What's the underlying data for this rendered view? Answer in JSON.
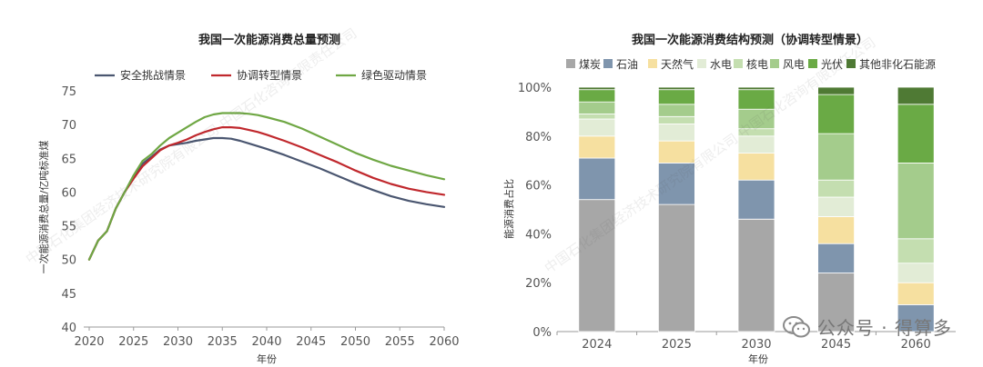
{
  "chart_data": [
    {
      "type": "line",
      "title": "我国一次能源消费总量预测",
      "xlabel": "年份",
      "ylabel": "一次能源消费总量/亿吨标准煤",
      "xlim": [
        2020,
        2060
      ],
      "ylim": [
        40,
        75
      ],
      "xticks": [
        "2020",
        "2025",
        "2030",
        "2035",
        "2040",
        "2045",
        "2050",
        "2055",
        "2060"
      ],
      "yticks": [
        "40",
        "45",
        "50",
        "55",
        "60",
        "65",
        "70",
        "75"
      ],
      "series": [
        {
          "name": "安全挑战情景",
          "color": "#4a5670",
          "x": [
            2020,
            2021,
            2022,
            2023,
            2024,
            2025,
            2026,
            2027,
            2028,
            2029,
            2030,
            2031,
            2032,
            2033,
            2034,
            2035,
            2036,
            2037,
            2038,
            2039,
            2040,
            2042,
            2044,
            2046,
            2048,
            2050,
            2052,
            2054,
            2056,
            2058,
            2060
          ],
          "values": [
            50.0,
            52.8,
            54.2,
            57.6,
            60.0,
            62.2,
            64.2,
            65.2,
            66.3,
            66.9,
            67.1,
            67.3,
            67.6,
            67.8,
            68.0,
            68.0,
            67.9,
            67.6,
            67.2,
            66.8,
            66.4,
            65.5,
            64.5,
            63.5,
            62.4,
            61.3,
            60.3,
            59.4,
            58.7,
            58.2,
            57.8
          ]
        },
        {
          "name": "协调转型情景",
          "color": "#c0282d",
          "x": [
            2020,
            2021,
            2022,
            2023,
            2024,
            2025,
            2026,
            2027,
            2028,
            2029,
            2030,
            2031,
            2032,
            2033,
            2034,
            2035,
            2036,
            2037,
            2038,
            2039,
            2040,
            2042,
            2044,
            2046,
            2048,
            2050,
            2052,
            2054,
            2056,
            2058,
            2060
          ],
          "values": [
            50.0,
            52.8,
            54.2,
            57.6,
            60.0,
            62.0,
            63.8,
            65.0,
            66.2,
            66.9,
            67.3,
            67.8,
            68.4,
            68.9,
            69.3,
            69.6,
            69.6,
            69.5,
            69.2,
            68.9,
            68.5,
            67.6,
            66.6,
            65.5,
            64.4,
            63.2,
            62.1,
            61.2,
            60.5,
            60.0,
            59.6
          ]
        },
        {
          "name": "绿色驱动情景",
          "color": "#6fa744",
          "x": [
            2020,
            2021,
            2022,
            2023,
            2024,
            2025,
            2026,
            2027,
            2028,
            2029,
            2030,
            2031,
            2032,
            2033,
            2034,
            2035,
            2036,
            2037,
            2038,
            2039,
            2040,
            2042,
            2044,
            2046,
            2048,
            2050,
            2052,
            2054,
            2056,
            2058,
            2060
          ],
          "values": [
            50.0,
            52.8,
            54.2,
            57.6,
            60.0,
            62.5,
            64.6,
            65.6,
            66.9,
            68.0,
            68.8,
            69.6,
            70.4,
            71.1,
            71.5,
            71.7,
            71.7,
            71.7,
            71.6,
            71.4,
            71.1,
            70.4,
            69.4,
            68.2,
            67.0,
            65.8,
            64.8,
            63.9,
            63.2,
            62.5,
            61.9
          ]
        }
      ]
    },
    {
      "type": "bar",
      "stacked": true,
      "title": "我国一次能源消费结构预测（协调转型情景）",
      "xlabel": "年份",
      "ylabel": "能源消费占比",
      "ylim": [
        0,
        100
      ],
      "yticks": [
        "0%",
        "20%",
        "40%",
        "60%",
        "80%",
        "100%"
      ],
      "categories": [
        "2024",
        "2025",
        "2030",
        "2045",
        "2060"
      ],
      "series": [
        {
          "name": "煤炭",
          "color": "#a7a7a7",
          "values": [
            54,
            52,
            46,
            24,
            0
          ]
        },
        {
          "name": "石油",
          "color": "#7f95ad",
          "values": [
            17,
            17,
            16,
            12,
            11
          ]
        },
        {
          "name": "天然气",
          "color": "#f6e0a0",
          "values": [
            9,
            9,
            11,
            11,
            9
          ]
        },
        {
          "name": "水电",
          "color": "#e2ecd6",
          "values": [
            7,
            7,
            7,
            8,
            8
          ]
        },
        {
          "name": "核电",
          "color": "#c4deb0",
          "values": [
            2,
            3,
            3,
            7,
            10
          ]
        },
        {
          "name": "风电",
          "color": "#a4cc8c",
          "values": [
            5,
            5,
            8,
            19,
            31
          ]
        },
        {
          "name": "光伏",
          "color": "#6aaa45",
          "values": [
            5,
            6,
            8,
            16,
            24
          ]
        },
        {
          "name": "其他非化石能源",
          "color": "#4f7a34",
          "values": [
            1,
            1,
            1,
            3,
            7
          ]
        }
      ]
    }
  ],
  "watermark": {
    "text": "中国石化集团经济技术研究院有限公司 中国石化咨询有限责任公司",
    "wechat_label": "公众号 · 得算多"
  }
}
